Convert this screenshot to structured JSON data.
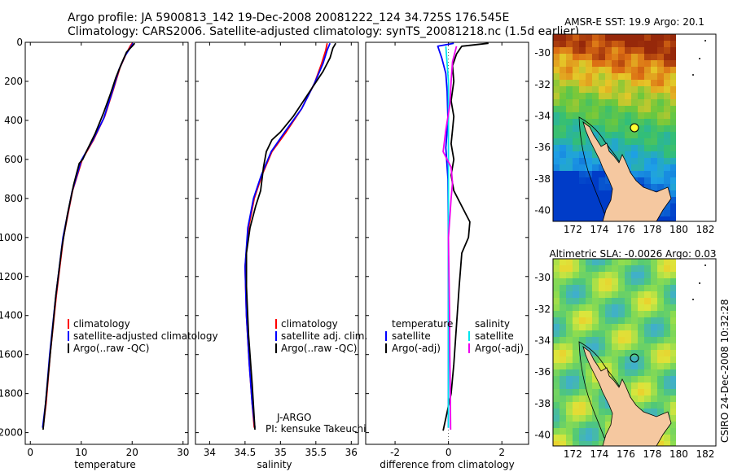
{
  "header": {
    "line1": "Argo profile: JA 5900813_142 19-Dec-2008 20081222_124 34.725S 176.545E",
    "line2": "Climatology: CARS2006. Satellite-adjusted climatology: synTS_20081218.nc (1.5d earlier)"
  },
  "side_label": "CSIRO 24-Dec-2008 10:32:28",
  "colors": {
    "climatology": "#ff0000",
    "satellite": "#0000ff",
    "argo": "#000000",
    "salinity_satellite": "#00e5ee",
    "salinity_argo": "#ee00ee",
    "land": "#f5c8a0"
  },
  "chart_data": [
    {
      "type": "line",
      "xlabel": "temperature",
      "ylabel": "",
      "xlim": [
        -1,
        31
      ],
      "ylim": [
        2060,
        0
      ],
      "xticks": [
        0,
        10,
        20,
        30
      ],
      "yticks": [
        0,
        200,
        400,
        600,
        800,
        1000,
        1200,
        1400,
        1600,
        1800,
        2000
      ],
      "legend": {
        "position": "bottom-right",
        "entries": [
          "climatology",
          "satellite-adjusted climatology",
          "Argo(..raw -QC)"
        ]
      },
      "series": [
        {
          "name": "climatology",
          "color": "climatology",
          "points": [
            [
              20,
              5
            ],
            [
              19.6,
              20
            ],
            [
              18.8,
              60
            ],
            [
              17.6,
              130
            ],
            [
              16.2,
              250
            ],
            [
              14.6,
              380
            ],
            [
              12.4,
              500
            ],
            [
              10.2,
              600
            ],
            [
              8.3,
              760
            ],
            [
              6.5,
              1000
            ],
            [
              5.1,
              1300
            ],
            [
              3.9,
              1600
            ],
            [
              3.1,
              1850
            ],
            [
              2.5,
              1975
            ]
          ]
        },
        {
          "name": "satellite-adjusted climatology",
          "color": "satellite",
          "points": [
            [
              20.2,
              5
            ],
            [
              19.7,
              25
            ],
            [
              18.6,
              70
            ],
            [
              17.4,
              140
            ],
            [
              16.0,
              260
            ],
            [
              14.4,
              390
            ],
            [
              12.2,
              505
            ],
            [
              10.0,
              605
            ],
            [
              8.2,
              765
            ],
            [
              6.4,
              1000
            ],
            [
              5.0,
              1300
            ],
            [
              3.8,
              1600
            ],
            [
              3.0,
              1850
            ],
            [
              2.4,
              1975
            ]
          ]
        },
        {
          "name": "Argo(..raw -QC)",
          "color": "argo",
          "points": [
            [
              20.5,
              5
            ],
            [
              20.0,
              20
            ],
            [
              18.9,
              50
            ],
            [
              17.9,
              110
            ],
            [
              16.8,
              180
            ],
            [
              15.8,
              260
            ],
            [
              14.4,
              360
            ],
            [
              12.7,
              470
            ],
            [
              11.0,
              560
            ],
            [
              10.3,
              600
            ],
            [
              9.6,
              620
            ],
            [
              8.5,
              730
            ],
            [
              7.3,
              880
            ],
            [
              6.2,
              1050
            ],
            [
              5.0,
              1300
            ],
            [
              3.9,
              1600
            ],
            [
              3.0,
              1850
            ],
            [
              2.5,
              1985
            ]
          ]
        }
      ]
    },
    {
      "type": "line",
      "xlabel": "salinity",
      "ylabel": "",
      "xlim": [
        33.8,
        36.1
      ],
      "ylim": [
        2060,
        0
      ],
      "xticks": [
        34,
        34.5,
        35,
        35.5,
        36
      ],
      "legend": {
        "position": "bottom-right",
        "entries": [
          "climatology",
          "satellite adj. clim.",
          "Argo(..raw -QC)"
        ]
      },
      "annotation": [
        "J-ARGO",
        "PI: kensuke Takeuchi"
      ],
      "series": [
        {
          "name": "climatology",
          "color": "climatology",
          "points": [
            [
              35.66,
              5
            ],
            [
              35.64,
              40
            ],
            [
              35.58,
              110
            ],
            [
              35.48,
              210
            ],
            [
              35.3,
              340
            ],
            [
              35.08,
              460
            ],
            [
              34.88,
              560
            ],
            [
              34.74,
              680
            ],
            [
              34.63,
              800
            ],
            [
              34.55,
              950
            ],
            [
              34.5,
              1150
            ],
            [
              34.52,
              1400
            ],
            [
              34.56,
              1650
            ],
            [
              34.6,
              1850
            ],
            [
              34.63,
              1975
            ]
          ]
        },
        {
          "name": "satellite adj. clim.",
          "color": "satellite",
          "points": [
            [
              35.7,
              5
            ],
            [
              35.66,
              40
            ],
            [
              35.6,
              110
            ],
            [
              35.48,
              210
            ],
            [
              35.3,
              340
            ],
            [
              35.06,
              460
            ],
            [
              34.87,
              560
            ],
            [
              34.73,
              680
            ],
            [
              34.62,
              800
            ],
            [
              34.54,
              950
            ],
            [
              34.5,
              1150
            ],
            [
              34.52,
              1400
            ],
            [
              34.56,
              1650
            ],
            [
              34.6,
              1850
            ],
            [
              34.64,
              1975
            ]
          ]
        },
        {
          "name": "Argo(..raw -QC)",
          "color": "argo",
          "points": [
            [
              35.78,
              5
            ],
            [
              35.74,
              30
            ],
            [
              35.7,
              80
            ],
            [
              35.6,
              150
            ],
            [
              35.4,
              260
            ],
            [
              35.18,
              380
            ],
            [
              35.0,
              460
            ],
            [
              34.88,
              500
            ],
            [
              34.8,
              560
            ],
            [
              34.76,
              640
            ],
            [
              34.72,
              760
            ],
            [
              34.65,
              840
            ],
            [
              34.57,
              950
            ],
            [
              34.52,
              1080
            ],
            [
              34.52,
              1250
            ],
            [
              34.55,
              1500
            ],
            [
              34.6,
              1750
            ],
            [
              34.64,
              1985
            ]
          ]
        }
      ]
    },
    {
      "type": "line",
      "xlabel": "difference from climatology",
      "ylabel": "",
      "xlim": [
        -3.1,
        3.0
      ],
      "ylim": [
        2060,
        0
      ],
      "xticks": [
        -2,
        0,
        2
      ],
      "legend": {
        "position": "bottom",
        "entries": [
          "temperature",
          "satellite",
          "Argo(-adj)",
          "salinity",
          "satellite",
          "Argo(-adj)"
        ]
      },
      "series": [
        {
          "name": "temperature satellite",
          "color": "satellite",
          "points": [
            [
              0.2,
              5
            ],
            [
              -0.4,
              20
            ],
            [
              -0.25,
              80
            ],
            [
              -0.1,
              160
            ],
            [
              -0.05,
              250
            ],
            [
              -0.02,
              400
            ],
            [
              -0.1,
              540
            ],
            [
              -0.02,
              700
            ],
            [
              0,
              1000
            ],
            [
              0,
              1400
            ],
            [
              0,
              1800
            ],
            [
              0,
              1975
            ]
          ]
        },
        {
          "name": "temperature Argo(-adj)",
          "color": "argo",
          "points": [
            [
              1.5,
              5
            ],
            [
              0.5,
              20
            ],
            [
              0.3,
              60
            ],
            [
              0.15,
              120
            ],
            [
              0.2,
              200
            ],
            [
              0.1,
              300
            ],
            [
              0.2,
              380
            ],
            [
              0.15,
              450
            ],
            [
              0.1,
              520
            ],
            [
              0.2,
              600
            ],
            [
              0.1,
              680
            ],
            [
              0.2,
              760
            ],
            [
              0.5,
              840
            ],
            [
              0.8,
              920
            ],
            [
              0.75,
              1000
            ],
            [
              0.5,
              1080
            ],
            [
              0.4,
              1250
            ],
            [
              0.3,
              1450
            ],
            [
              0.2,
              1650
            ],
            [
              0.1,
              1800
            ],
            [
              -0.2,
              1990
            ]
          ]
        },
        {
          "name": "salinity satellite",
          "color": "salinity_satellite",
          "points": [
            [
              -0.1,
              20
            ],
            [
              0,
              200
            ],
            [
              0,
              600
            ],
            [
              0,
              1000
            ],
            [
              0,
              1400
            ],
            [
              0,
              1800
            ],
            [
              0,
              1975
            ]
          ]
        },
        {
          "name": "salinity Argo(-adj)",
          "color": "salinity_argo",
          "points": [
            [
              0.3,
              20
            ],
            [
              0.15,
              100
            ],
            [
              0.1,
              200
            ],
            [
              0.05,
              320
            ],
            [
              -0.1,
              450
            ],
            [
              -0.2,
              560
            ],
            [
              0.1,
              640
            ],
            [
              0.15,
              720
            ],
            [
              0.1,
              800
            ],
            [
              0.05,
              900
            ],
            [
              0,
              1000
            ],
            [
              0.02,
              1200
            ],
            [
              0.04,
              1400
            ],
            [
              0.05,
              1600
            ],
            [
              0.07,
              1800
            ],
            [
              0.08,
              1985
            ]
          ]
        }
      ]
    },
    {
      "type": "heatmap",
      "title": "AMSR-E SST: 19.9 Argo: 20.1",
      "xlim": [
        170.5,
        182.8
      ],
      "ylim": [
        -40.7,
        -28.8
      ],
      "xticks": [
        172,
        174,
        176,
        178,
        180,
        182
      ],
      "yticks": [
        -30,
        -32,
        -34,
        -36,
        -38,
        -40
      ],
      "marker": [
        176.545,
        -34.725
      ]
    },
    {
      "type": "heatmap",
      "title": "Altimetric SLA: -0.0026 Argo: 0.03",
      "xlim": [
        170.5,
        182.8
      ],
      "ylim": [
        -40.7,
        -28.8
      ],
      "xticks": [
        172,
        174,
        176,
        178,
        180,
        182
      ],
      "yticks": [
        -30,
        -32,
        -34,
        -36,
        -38,
        -40
      ],
      "marker": [
        176.545,
        -34.725
      ]
    }
  ]
}
